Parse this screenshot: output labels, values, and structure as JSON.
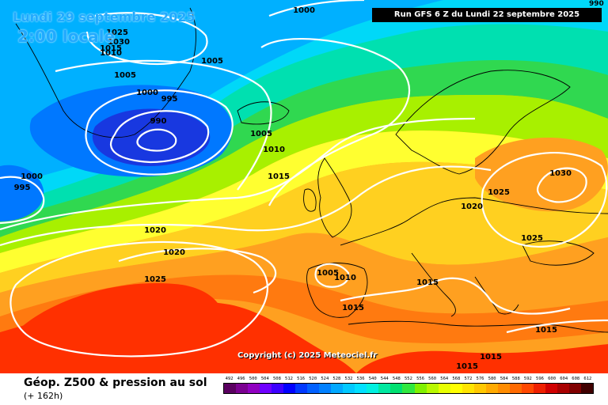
{
  "header": {
    "date": "Lundi 29 septembre 2025",
    "time": "2:00 locale",
    "run": "Run GFS 6 Z du Lundi 22 septembre 2025",
    "corner_value": "990"
  },
  "copyright": "Copyright (c) 2025 Meteociel.fr",
  "footer": {
    "title": "Géop. Z500 & pression au sol",
    "subtitle": "(+ 162h)"
  },
  "scale": {
    "ticks": [
      "492",
      "496",
      "500",
      "504",
      "508",
      "512",
      "516",
      "520",
      "524",
      "528",
      "532",
      "536",
      "540",
      "544",
      "548",
      "552",
      "556",
      "560",
      "564",
      "568",
      "572",
      "576",
      "580",
      "584",
      "588",
      "592",
      "596",
      "600",
      "604",
      "608",
      "612"
    ],
    "colors": [
      "#5a0060",
      "#7a0090",
      "#9000c0",
      "#6e00ff",
      "#3c00ff",
      "#0000ff",
      "#0038ff",
      "#0060ff",
      "#0080ff",
      "#00a8ff",
      "#00c8ff",
      "#00e0ff",
      "#00f0e0",
      "#00e8a0",
      "#00e070",
      "#30e840",
      "#80f000",
      "#b8f800",
      "#e8ff00",
      "#ffff00",
      "#ffe400",
      "#ffc800",
      "#ffaa00",
      "#ff8c00",
      "#ff6a00",
      "#ff4800",
      "#ee2000",
      "#d00000",
      "#a80000",
      "#800000",
      "#400000"
    ]
  },
  "map": {
    "colors": {
      "orange_deep": "#ff7a10",
      "orange": "#ffa020",
      "yellow_orange": "#ffd020",
      "yellow": "#ffff30",
      "lime": "#a8f000",
      "green": "#30d850",
      "teal": "#00e0b0",
      "cyan": "#00d8f8",
      "sky": "#00b0ff",
      "blue": "#0078ff",
      "deep_blue": "#1838e0",
      "red": "#ff3000"
    },
    "isobar_labels": [
      {
        "text": "1000"
      },
      {
        "text": "1005"
      },
      {
        "text": "1005"
      },
      {
        "text": "1000"
      },
      {
        "text": "995"
      },
      {
        "text": "990"
      },
      {
        "text": "1005"
      },
      {
        "text": "1010"
      },
      {
        "text": "1015"
      },
      {
        "text": "1000"
      },
      {
        "text": "995"
      },
      {
        "text": "1020"
      },
      {
        "text": "1020"
      },
      {
        "text": "1025"
      },
      {
        "text": "1005"
      },
      {
        "text": "1010"
      },
      {
        "text": "1015"
      },
      {
        "text": "1015"
      },
      {
        "text": "1020"
      },
      {
        "text": "1025"
      },
      {
        "text": "1025"
      },
      {
        "text": "1030"
      },
      {
        "text": "1015"
      },
      {
        "text": "1015"
      },
      {
        "text": "1015"
      },
      {
        "text": "1025"
      },
      {
        "text": "1030"
      },
      {
        "text": "1015"
      },
      {
        "text": "1010"
      }
    ]
  }
}
